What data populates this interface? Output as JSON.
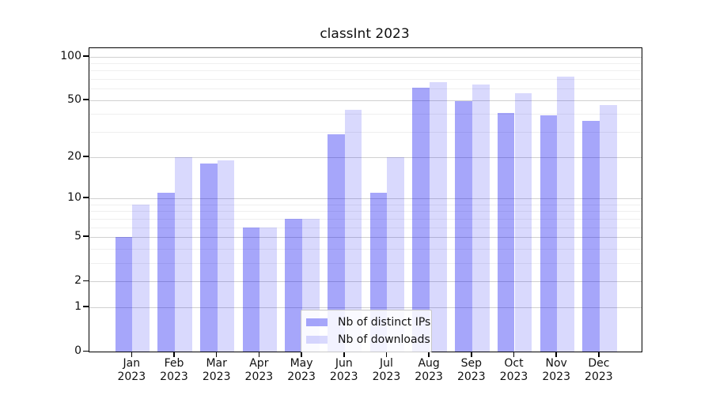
{
  "title": "classInt 2023",
  "colors": {
    "bar_distinct_ips": "rgba(0,0,240,0.35)",
    "bar_downloads": "rgba(0,0,240,0.15)",
    "grid_major": "#d0d0d0",
    "grid_minor": "#efefef",
    "spine": "#000000",
    "background": "#ffffff"
  },
  "chart_data": {
    "type": "bar",
    "title": "classInt 2023",
    "scale": "log10(1+y)",
    "grid": true,
    "legend_position": "inside lower center",
    "categories": [
      "Jan",
      "Feb",
      "Mar",
      "Apr",
      "May",
      "Jun",
      "Jul",
      "Aug",
      "Sep",
      "Oct",
      "Nov",
      "Dec"
    ],
    "year": "2023",
    "series": [
      {
        "name": "Nb of distinct IPs",
        "color": "rgba(0,0,240,0.35)",
        "values": [
          5,
          11,
          18,
          6,
          7,
          29,
          11,
          61,
          49,
          41,
          39,
          36
        ]
      },
      {
        "name": "Nb of downloads",
        "color": "rgba(0,0,240,0.15)",
        "values": [
          9,
          20,
          19,
          6,
          7,
          43,
          20,
          67,
          64,
          56,
          73,
          46
        ]
      }
    ],
    "xlabel": "",
    "ylabel": "",
    "ylim": [
      0,
      113
    ],
    "y_ticks": [
      0,
      1,
      2,
      5,
      10,
      20,
      50,
      100
    ],
    "y_major_grid": [
      1,
      2,
      5,
      10,
      20,
      50,
      100
    ],
    "y_minor_grid": [
      3,
      4,
      6,
      7,
      8,
      9,
      30,
      40,
      60,
      70,
      80,
      90
    ]
  }
}
